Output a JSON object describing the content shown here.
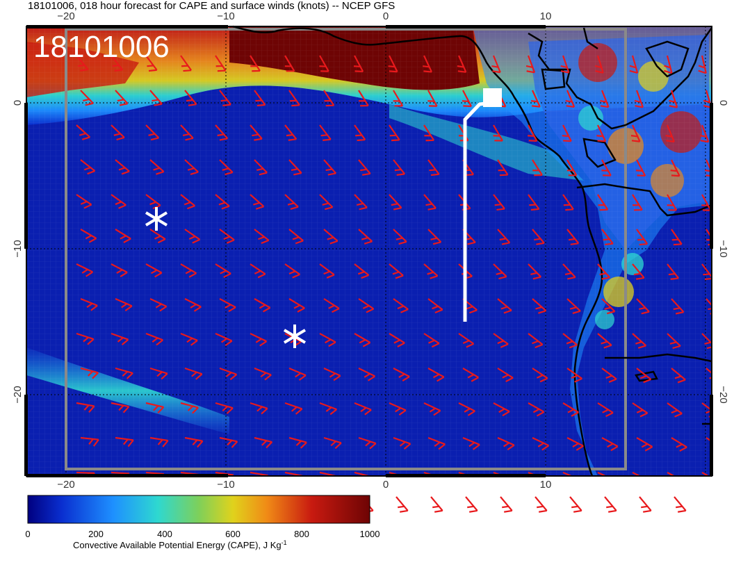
{
  "title": "18101006, 018 hour forecast for CAPE and surface winds (knots) -- NCEP GFS",
  "stamp": "18101006",
  "axes": {
    "lon_ticks": [
      "−20",
      "−10",
      "0",
      "10"
    ],
    "lat_ticks": [
      "0",
      "−10",
      "−20"
    ]
  },
  "colorbar": {
    "label": "Convective Available Potential Energy (CAPE), J Kg",
    "label_sup": "-1",
    "ticks": [
      "0",
      "200",
      "400",
      "600",
      "800",
      "1000"
    ],
    "colors": [
      "#000080",
      "#0a2fd0",
      "#1e90ff",
      "#2ed8d0",
      "#7ed05a",
      "#e0d21c",
      "#f08a16",
      "#c81a10",
      "#6e0404"
    ]
  },
  "overlay": {
    "track_color": "#ffffff",
    "barb_color": "#e8191c",
    "coast_color": "#000000"
  }
}
